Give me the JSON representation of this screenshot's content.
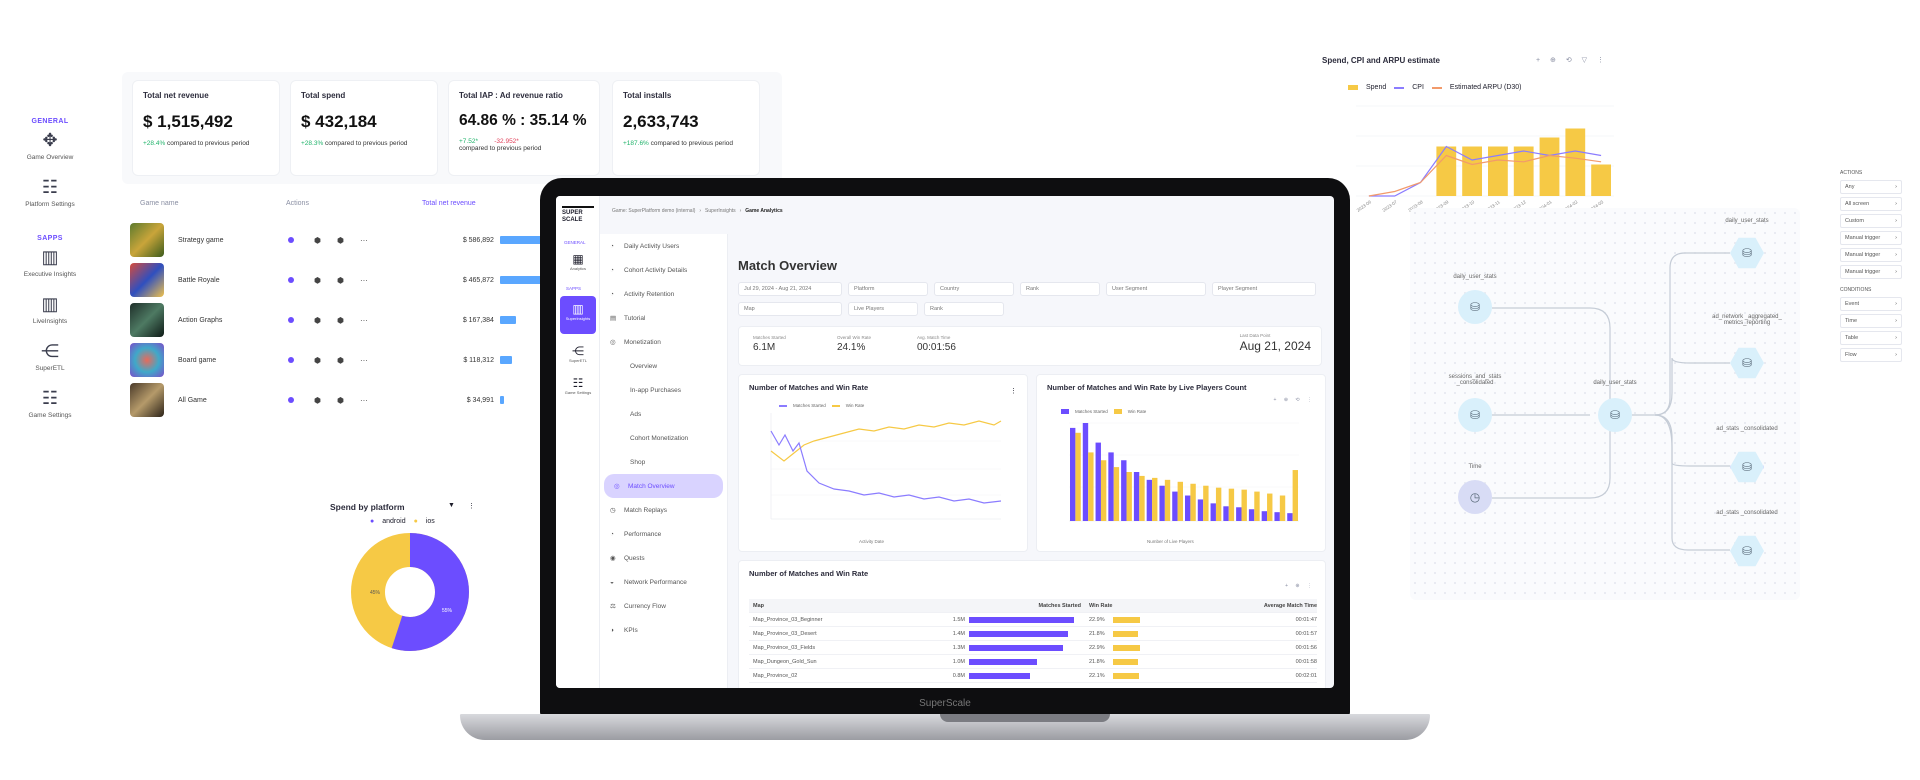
{
  "left_sidebar": {
    "sections": [
      {
        "label": "GENERAL",
        "items": [
          {
            "label": "Game Overview",
            "icon": "dashboard-icon"
          },
          {
            "label": "Platform Settings",
            "icon": "settings-icon"
          }
        ]
      },
      {
        "label": "SAPPS",
        "items": [
          {
            "label": "Executive Insights",
            "icon": "chart-icon"
          },
          {
            "label": "LiveInsights",
            "icon": "chart-icon"
          },
          {
            "label": "SuperETL",
            "icon": "etl-icon"
          },
          {
            "label": "Game Settings",
            "icon": "sliders-icon"
          }
        ]
      }
    ]
  },
  "kpis": [
    {
      "title": "Total net revenue",
      "value": "$ 1,515,492",
      "change": "+28.4%",
      "note": "compared to previous period"
    },
    {
      "title": "Total spend",
      "value": "$ 432,184",
      "change": "+28.3%",
      "note": "compared to previous period"
    },
    {
      "title": "Total IAP : Ad revenue ratio",
      "value": "64.86 % : 35.14 %",
      "change": "+7.52*",
      "change_neg": "-32.952*",
      "note": "compared to previous period"
    },
    {
      "title": "Total installs",
      "value": "2,633,743",
      "change": "+187.6%",
      "note": "compared to previous period"
    }
  ],
  "games_table": {
    "headers": [
      "Game name",
      "Actions",
      "Total net revenue"
    ],
    "rows": [
      {
        "name": "Strategy game",
        "revenue": "$ 586,892",
        "bar": 0.9
      },
      {
        "name": "Battle Royale",
        "revenue": "$ 465,872",
        "bar": 0.72
      },
      {
        "name": "Action Graphs",
        "revenue": "$ 167,384",
        "bar": 0.26
      },
      {
        "name": "Board game",
        "revenue": "$ 118,312",
        "bar": 0.19
      },
      {
        "name": "All Game",
        "revenue": "$ 34,991",
        "bar": 0.06
      }
    ]
  },
  "pie": {
    "title": "Spend by platform",
    "legend": [
      "android",
      "ios"
    ],
    "android_label": "55%",
    "ios_label": "45%",
    "colors": {
      "android": "#6c4dff",
      "ios": "#f6c945"
    }
  },
  "laptop": {
    "brand": "SuperScale",
    "logo": "SUPER SCALE",
    "breadcrumb": [
      "Game: SuperPlatform demo (internal)",
      "SuperInsights",
      "Game Analytics"
    ],
    "rail": {
      "sections": [
        "GENERAL",
        "SAPPS"
      ],
      "items": [
        "Analytics",
        "SuperInsights",
        "SuperETL",
        "Game Settings"
      ]
    },
    "subnav": [
      "Daily Activity Users",
      "Cohort Activity Details",
      "Activity Retention",
      "Tutorial",
      "Monetization",
      "Overview",
      "In-app Purchases",
      "Ads",
      "Cohort Monetization",
      "Shop",
      "Match Overview",
      "Match Replays",
      "Performance",
      "Quests",
      "Network Performance",
      "Currency Flow",
      "KPIs"
    ],
    "page_title": "Match Overview",
    "filters": [
      "Jul 29, 2024 - Aug 21, 2024",
      "Platform",
      "Country",
      "Rank",
      "User Segment",
      "Player Segment",
      "Map",
      "Live Players",
      "Rank"
    ],
    "stats": [
      {
        "label": "Matches Started",
        "value": "6.1M"
      },
      {
        "label": "Overall Win Rate",
        "value": "24.1%"
      },
      {
        "label": "Avg. Match Time",
        "value": "00:01:56"
      }
    ],
    "last_date_label": "Last Data Point",
    "last_date": "Aug 21, 2024",
    "chart1": {
      "title": "Number of Matches and Win Rate",
      "legend": [
        "Matches Started",
        "Win Rate"
      ],
      "xlabel": "Activity Date"
    },
    "chart2": {
      "title": "Number of Matches and Win Rate by Live Players Count",
      "legend": [
        "Matches Started",
        "Win Rate"
      ],
      "xlabel": "Number of Live Players"
    },
    "table": {
      "title": "Number of Matches and Win Rate",
      "headers": [
        "Map",
        "Matches Started",
        "Win Rate",
        "Average Match Time"
      ],
      "rows": [
        {
          "map": "Map_Province_03_Beginner",
          "matches": "1.5M",
          "win": "22.9%",
          "time": "00:01:47",
          "m": 0.95,
          "w": 0.45
        },
        {
          "map": "Map_Province_03_Desert",
          "matches": "1.4M",
          "win": "21.8%",
          "time": "00:01:57",
          "m": 0.9,
          "w": 0.42
        },
        {
          "map": "Map_Province_03_Fields",
          "matches": "1.3M",
          "win": "22.9%",
          "time": "00:01:56",
          "m": 0.85,
          "w": 0.45
        },
        {
          "map": "Map_Dungeon_Gold_Sun",
          "matches": "1.0M",
          "win": "21.8%",
          "time": "00:01:58",
          "m": 0.62,
          "w": 0.42
        },
        {
          "map": "Map_Province_02",
          "matches": "0.8M",
          "win": "22.1%",
          "time": "00:02:01",
          "m": 0.55,
          "w": 0.43
        }
      ]
    }
  },
  "spend_chart": {
    "title": "Spend, CPI and ARPU estimate",
    "legend": [
      "Spend",
      "CPI",
      "Estimated ARPU (D30)"
    ],
    "colors": {
      "spend": "#f6c945",
      "cpi": "#8b7cff",
      "arpu": "#f29a6b"
    },
    "x": [
      "2023-06",
      "2023-07",
      "2023-08",
      "2023-09",
      "2023-10",
      "2023-11",
      "2023-12",
      "2024-01",
      "2024-02",
      "2024-03"
    ],
    "spend": [
      0,
      0,
      0,
      0.55,
      0.55,
      0.55,
      0.55,
      0.65,
      0.75,
      0.35
    ],
    "cpi": [
      0,
      0,
      0.15,
      0.55,
      0.4,
      0.45,
      0.5,
      0.45,
      0.5,
      0.45
    ],
    "arpu": [
      0,
      0.05,
      0.15,
      0.45,
      0.35,
      0.4,
      0.38,
      0.45,
      0.42,
      0.38
    ]
  },
  "flow": {
    "nodes": [
      {
        "id": "n1",
        "label": "daily_user_stats",
        "shape": "circle"
      },
      {
        "id": "n2",
        "label": "sessions_and_stats _consolidated",
        "shape": "circle"
      },
      {
        "id": "n3",
        "label": "Time",
        "shape": "circle"
      },
      {
        "id": "n4",
        "label": "daily_user_stats",
        "shape": "circle"
      },
      {
        "id": "n5",
        "label": "daily_user_stats",
        "shape": "hex"
      },
      {
        "id": "n6",
        "label": "ad_network _aggregated_ metrics_reporting",
        "shape": "hex"
      },
      {
        "id": "n7",
        "label": "ad_stats _consolidated",
        "shape": "hex"
      },
      {
        "id": "n8",
        "label": "ad_stats _consolidated",
        "shape": "hex"
      }
    ]
  },
  "actions_panel": {
    "sections": [
      {
        "title": "ACTIONS",
        "items": [
          "Any",
          "All screen",
          "Custom",
          "Manual trigger",
          "Manual trigger",
          "Manual trigger"
        ]
      },
      {
        "title": "CONDITIONS",
        "items": [
          "Event",
          "Time",
          "Table",
          "Flow"
        ]
      }
    ]
  }
}
